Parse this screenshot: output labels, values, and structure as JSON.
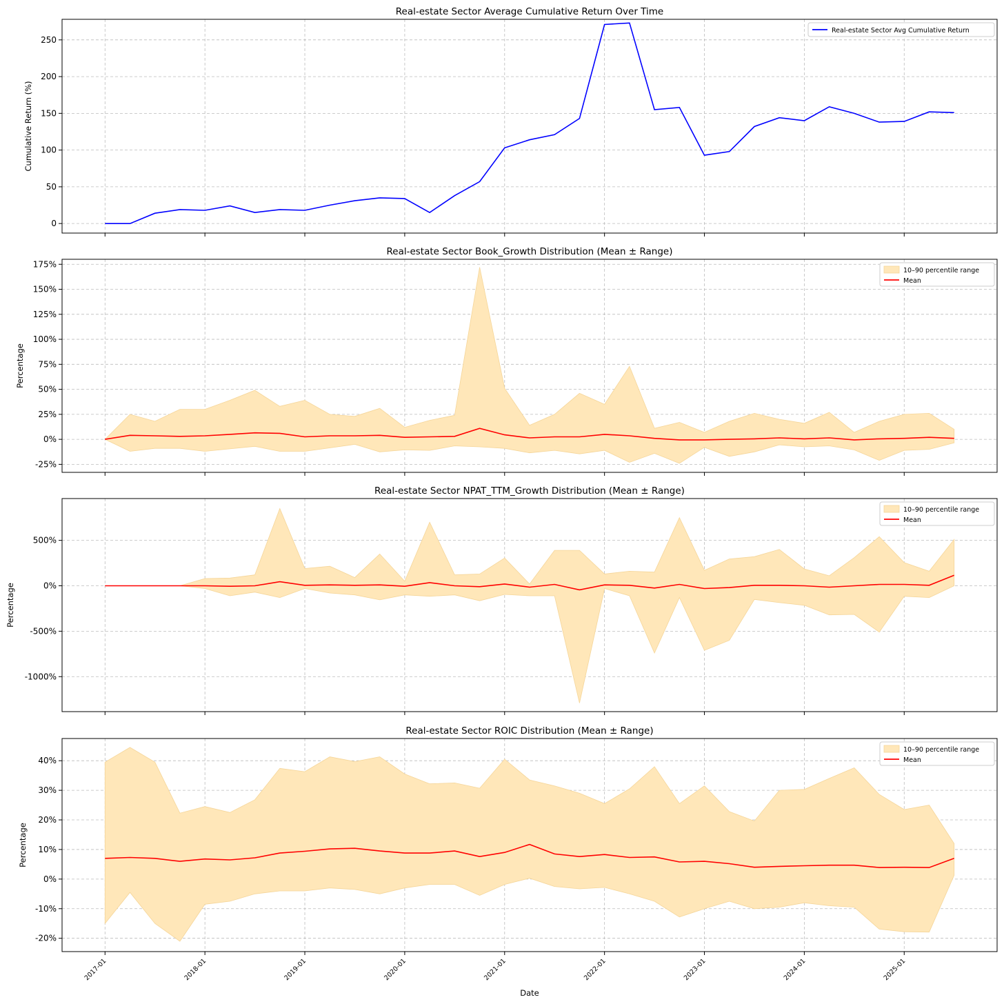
{
  "figure": {
    "xlabel": "Date"
  },
  "colors": {
    "line": "#0000ff",
    "mean": "#ff0000",
    "band": "#ffe7b9",
    "band_edge": "#f5d598",
    "grid": "#b0b0b0"
  },
  "chart_data": [
    {
      "type": "line",
      "title": "Real-estate Sector Average Cumulative Return Over Time",
      "ylabel": "Cumulative Return (%)",
      "ylim": [
        -13,
        278
      ],
      "yticks": [
        0,
        50,
        100,
        150,
        200,
        250
      ],
      "ytick_labels": [
        "0",
        "50",
        "100",
        "150",
        "200",
        "250"
      ],
      "legend": [
        "Real-estate Sector Avg Cumulative Return"
      ],
      "legend_position": "top-right",
      "x": [
        2017.0,
        2017.25,
        2017.5,
        2017.75,
        2018.0,
        2018.25,
        2018.5,
        2018.75,
        2019.0,
        2019.25,
        2019.5,
        2019.75,
        2020.0,
        2020.25,
        2020.5,
        2020.75,
        2021.0,
        2021.25,
        2021.5,
        2021.75,
        2022.0,
        2022.25,
        2022.5,
        2022.75,
        2023.0,
        2023.25,
        2023.5,
        2023.75,
        2024.0,
        2024.25,
        2024.5,
        2024.75,
        2025.0,
        2025.25,
        2025.5
      ],
      "series": [
        {
          "name": "Real-estate Sector Avg Cumulative Return",
          "values": [
            0,
            0,
            14,
            19,
            18,
            24,
            15,
            19,
            18,
            25,
            31,
            35,
            34,
            15,
            38,
            57,
            103,
            114,
            121,
            143,
            271,
            273,
            155,
            158,
            93,
            98,
            132,
            144,
            140,
            159,
            150,
            138,
            139,
            152,
            151
          ]
        }
      ]
    },
    {
      "type": "area",
      "title": "Real-estate Sector Book_Growth Distribution (Mean ± Range)",
      "ylabel": "Percentage",
      "ylim": [
        -33,
        180
      ],
      "yticks": [
        -25,
        0,
        25,
        50,
        75,
        100,
        125,
        150,
        175
      ],
      "ytick_labels": [
        "-25%",
        "0%",
        "25%",
        "50%",
        "75%",
        "100%",
        "125%",
        "150%",
        "175%"
      ],
      "legend": [
        "10–90 percentile range",
        "Mean"
      ],
      "legend_position": "top-right",
      "x": [
        2017.0,
        2017.25,
        2017.5,
        2017.75,
        2018.0,
        2018.25,
        2018.5,
        2018.75,
        2019.0,
        2019.25,
        2019.5,
        2019.75,
        2020.0,
        2020.25,
        2020.5,
        2020.75,
        2021.0,
        2021.25,
        2021.5,
        2021.75,
        2022.0,
        2022.25,
        2022.5,
        2022.75,
        2023.0,
        2023.25,
        2023.5,
        2023.75,
        2024.0,
        2024.25,
        2024.5,
        2024.75,
        2025.0,
        2025.25,
        2025.5
      ],
      "series": [
        {
          "name": "Mean",
          "values": [
            0,
            4,
            3.5,
            3,
            3.5,
            5,
            6.5,
            6,
            2.5,
            3.5,
            3.5,
            4,
            2,
            2.5,
            3,
            11,
            4.5,
            1.5,
            2.5,
            2.5,
            5,
            3.5,
            1,
            -0.5,
            -0.5,
            0,
            0.5,
            1.5,
            0.5,
            1.5,
            -0.5,
            0.5,
            1,
            2,
            1
          ]
        },
        {
          "name": "10–90 percentile range (lower)",
          "values": [
            0,
            -12,
            -9,
            -9,
            -12,
            -9.5,
            -7,
            -12,
            -12,
            -8.5,
            -5,
            -12.5,
            -10.5,
            -11,
            -6.5,
            -7.5,
            -9,
            -13.5,
            -11,
            -14.5,
            -11,
            -23,
            -14,
            -24,
            -8,
            -17,
            -12.5,
            -5.5,
            -7.5,
            -6.5,
            -10.5,
            -21,
            -11,
            -10,
            -3.5
          ]
        },
        {
          "name": "10–90 percentile range (upper)",
          "values": [
            0,
            25,
            18,
            30,
            30,
            39,
            49,
            33,
            39,
            25,
            23,
            31,
            12,
            19,
            24,
            172,
            51,
            14,
            25,
            46,
            35,
            73,
            11,
            17,
            7,
            18,
            26,
            20,
            16,
            27,
            7,
            18,
            25,
            26,
            10
          ]
        }
      ]
    },
    {
      "type": "area",
      "title": "Real-estate Sector NPAT_TTM_Growth Distribution (Mean ± Range)",
      "ylabel": "Percentage",
      "ylim": [
        -1385,
        960
      ],
      "yticks": [
        -1000,
        -500,
        0,
        500
      ],
      "ytick_labels": [
        "-1000%",
        "-500%",
        "0%",
        "500%"
      ],
      "legend": [
        "10–90 percentile range",
        "Mean"
      ],
      "legend_position": "top-right",
      "x": [
        2017.0,
        2017.25,
        2017.5,
        2017.75,
        2018.0,
        2018.25,
        2018.5,
        2018.75,
        2019.0,
        2019.25,
        2019.5,
        2019.75,
        2020.0,
        2020.25,
        2020.5,
        2020.75,
        2021.0,
        2021.25,
        2021.5,
        2021.75,
        2022.0,
        2022.25,
        2022.5,
        2022.75,
        2023.0,
        2023.25,
        2023.5,
        2023.75,
        2024.0,
        2024.25,
        2024.5,
        2024.75,
        2025.0,
        2025.25,
        2025.5
      ],
      "series": [
        {
          "name": "Mean",
          "values": [
            0,
            0,
            0,
            0,
            0,
            -5,
            0,
            45,
            5,
            10,
            5,
            10,
            -5,
            35,
            0,
            -10,
            20,
            -15,
            15,
            -45,
            10,
            5,
            -25,
            15,
            -30,
            -20,
            5,
            5,
            0,
            -15,
            0,
            15,
            15,
            5,
            115
          ]
        },
        {
          "name": "10–90 percentile range (lower)",
          "values": [
            0,
            0,
            0,
            0,
            -30,
            -110,
            -70,
            -130,
            -30,
            -80,
            -100,
            -155,
            -100,
            -115,
            -100,
            -165,
            -95,
            -110,
            -110,
            -1290,
            -30,
            -110,
            -740,
            -130,
            -710,
            -600,
            -150,
            -185,
            -215,
            -320,
            -315,
            -510,
            -115,
            -130,
            0
          ]
        },
        {
          "name": "10–90 percentile range (upper)",
          "values": [
            0,
            0,
            0,
            0,
            80,
            85,
            120,
            850,
            190,
            215,
            90,
            350,
            50,
            700,
            120,
            130,
            305,
            20,
            390,
            390,
            130,
            160,
            150,
            750,
            170,
            295,
            320,
            400,
            185,
            110,
            310,
            540,
            255,
            160,
            510
          ]
        }
      ]
    },
    {
      "type": "area",
      "title": "Real-estate Sector ROIC Distribution (Mean ± Range)",
      "ylabel": "Percentage",
      "ylim": [
        -24.5,
        47.5
      ],
      "yticks": [
        -20,
        -10,
        0,
        10,
        20,
        30,
        40
      ],
      "ytick_labels": [
        "-20%",
        "-10%",
        "0%",
        "10%",
        "20%",
        "30%",
        "40%"
      ],
      "legend": [
        "10–90 percentile range",
        "Mean"
      ],
      "legend_position": "top-right",
      "x": [
        2017.0,
        2017.25,
        2017.5,
        2017.75,
        2018.0,
        2018.25,
        2018.5,
        2018.75,
        2019.0,
        2019.25,
        2019.5,
        2019.75,
        2020.0,
        2020.25,
        2020.5,
        2020.75,
        2021.0,
        2021.25,
        2021.5,
        2021.75,
        2022.0,
        2022.25,
        2022.5,
        2022.75,
        2023.0,
        2023.25,
        2023.5,
        2023.75,
        2024.0,
        2024.25,
        2024.5,
        2024.75,
        2025.0,
        2025.25,
        2025.5
      ],
      "series": [
        {
          "name": "Mean",
          "values": [
            7,
            7.3,
            7,
            6,
            6.8,
            6.5,
            7.2,
            8.8,
            9.4,
            10.2,
            10.4,
            9.5,
            8.8,
            8.8,
            9.5,
            7.6,
            9,
            11.7,
            8.5,
            7.6,
            8.3,
            7.3,
            7.5,
            5.8,
            6,
            5.2,
            4,
            4.3,
            4.5,
            4.7,
            4.7,
            3.9,
            4,
            3.9,
            7
          ]
        },
        {
          "name": "10–90 percentile range (lower)",
          "values": [
            -15,
            -4.5,
            -15,
            -21,
            -8.5,
            -7.5,
            -5,
            -4,
            -4,
            -3,
            -3.5,
            -5,
            -3,
            -1.8,
            -1.8,
            -5.5,
            -1.8,
            0.3,
            -2.5,
            -3.3,
            -2.8,
            -5,
            -7.5,
            -12.8,
            -10,
            -7.5,
            -10,
            -9.5,
            -8,
            -9,
            -9.5,
            -16.9,
            -17.8,
            -17.9,
            1.3
          ]
        },
        {
          "name": "10–90 percentile range (upper)",
          "values": [
            39.5,
            44.5,
            39.5,
            22.3,
            24.5,
            22.5,
            26.8,
            37.4,
            36.3,
            41.3,
            39.7,
            41.3,
            35.5,
            32.2,
            32.5,
            30.7,
            40.5,
            33.5,
            31.5,
            29,
            25.5,
            30.5,
            38,
            25.5,
            31.5,
            22.8,
            19.6,
            30,
            30.3,
            34,
            37.6,
            28.6,
            23.5,
            25,
            12
          ]
        }
      ]
    }
  ],
  "x_axis": {
    "tick_values": [
      2017,
      2018,
      2019,
      2020,
      2021,
      2022,
      2023,
      2024,
      2025
    ],
    "tick_labels": [
      "2017-01",
      "2018-01",
      "2019-01",
      "2020-01",
      "2021-01",
      "2022-01",
      "2023-01",
      "2024-01",
      "2025-01"
    ]
  }
}
